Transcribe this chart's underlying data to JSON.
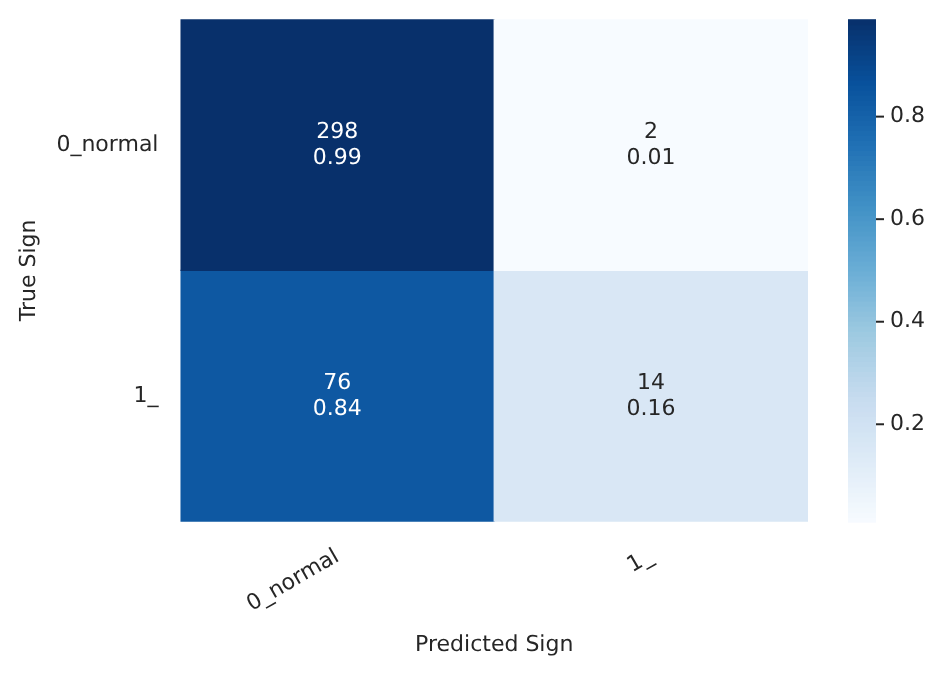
{
  "chart_data": {
    "type": "heatmap",
    "xlabel": "Predicted Sign",
    "ylabel": "True Sign",
    "categories": [
      "0_normal",
      "1_"
    ],
    "y_categories": [
      "0_normal",
      "1_"
    ],
    "cells": [
      [
        0.99,
        0.01
      ],
      [
        0.84,
        0.16
      ]
    ],
    "cell_labels": [
      [
        "298\n0.99",
        "2\n0.01"
      ],
      [
        "76\n0.84",
        "14\n0.16"
      ]
    ],
    "clim": [
      0.01,
      0.99
    ],
    "cticks": [
      0.2,
      0.4,
      0.6,
      0.8
    ]
  }
}
